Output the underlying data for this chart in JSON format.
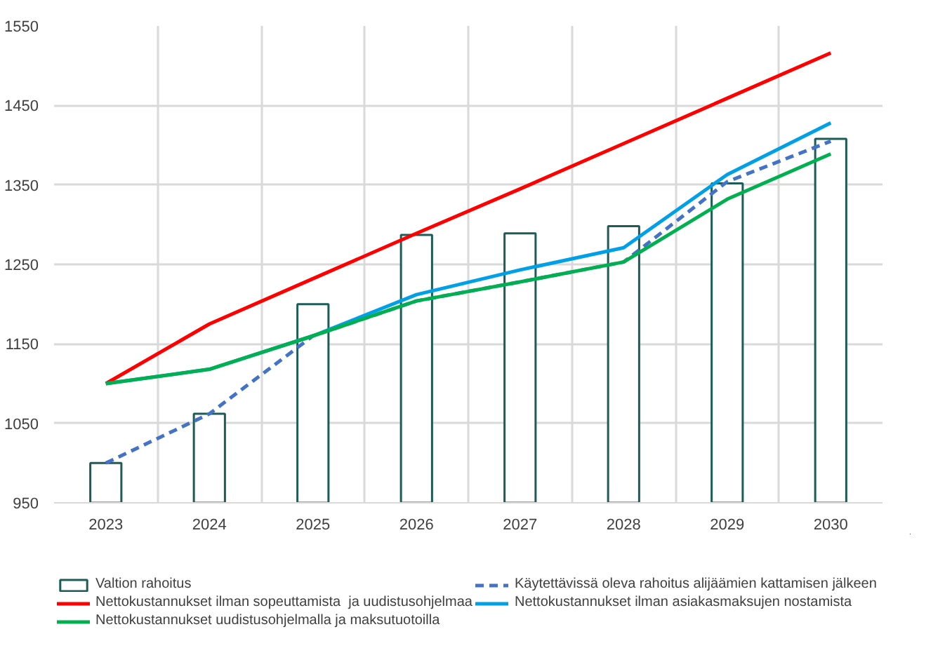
{
  "chart_data": {
    "type": "line",
    "categories": [
      "2023",
      "2024",
      "2025",
      "2026",
      "2027",
      "2028",
      "2029",
      "2030"
    ],
    "ylim": [
      950,
      1550
    ],
    "yticks": [
      950,
      1050,
      1150,
      1250,
      1350,
      1450,
      1550
    ],
    "grid": true,
    "legend": "bottom",
    "marker": "none",
    "series": [
      {
        "name": "Valtion rahoitus",
        "type": "bar",
        "color": "#1d5c57",
        "values": [
          1000,
          1062,
          1200,
          1287,
          1289,
          1298,
          1352,
          1408
        ]
      },
      {
        "name": "Käytettävissä oleva rahoitus alijäämien kattamisen jälkeen",
        "line_style": "dashed",
        "color": "#4472c4",
        "values": [
          1000,
          1062,
          1160,
          1204,
          1228,
          1253,
          1354,
          1405
        ]
      },
      {
        "name": "Nettokustannukset ilman sopeuttamista  ja uudistusohjelmaa",
        "line_style": "solid",
        "color": "#ff0000",
        "values": [
          1100,
          1175,
          1232,
          1289,
          1345,
          1402,
          1459,
          1516
        ]
      },
      {
        "name": "Nettokustannukset ilman asiakasmaksujen nostamista",
        "line_style": "solid",
        "color": "#00a0e6",
        "values": [
          1100,
          1118,
          1160,
          1212,
          1243,
          1271,
          1363,
          1428
        ]
      },
      {
        "name": "Nettokustannukset uudistusohjelmalla ja maksutuotoilla",
        "line_style": "solid",
        "color": "#00b050",
        "values": [
          1100,
          1118,
          1160,
          1204,
          1228,
          1253,
          1332,
          1389
        ]
      }
    ]
  }
}
